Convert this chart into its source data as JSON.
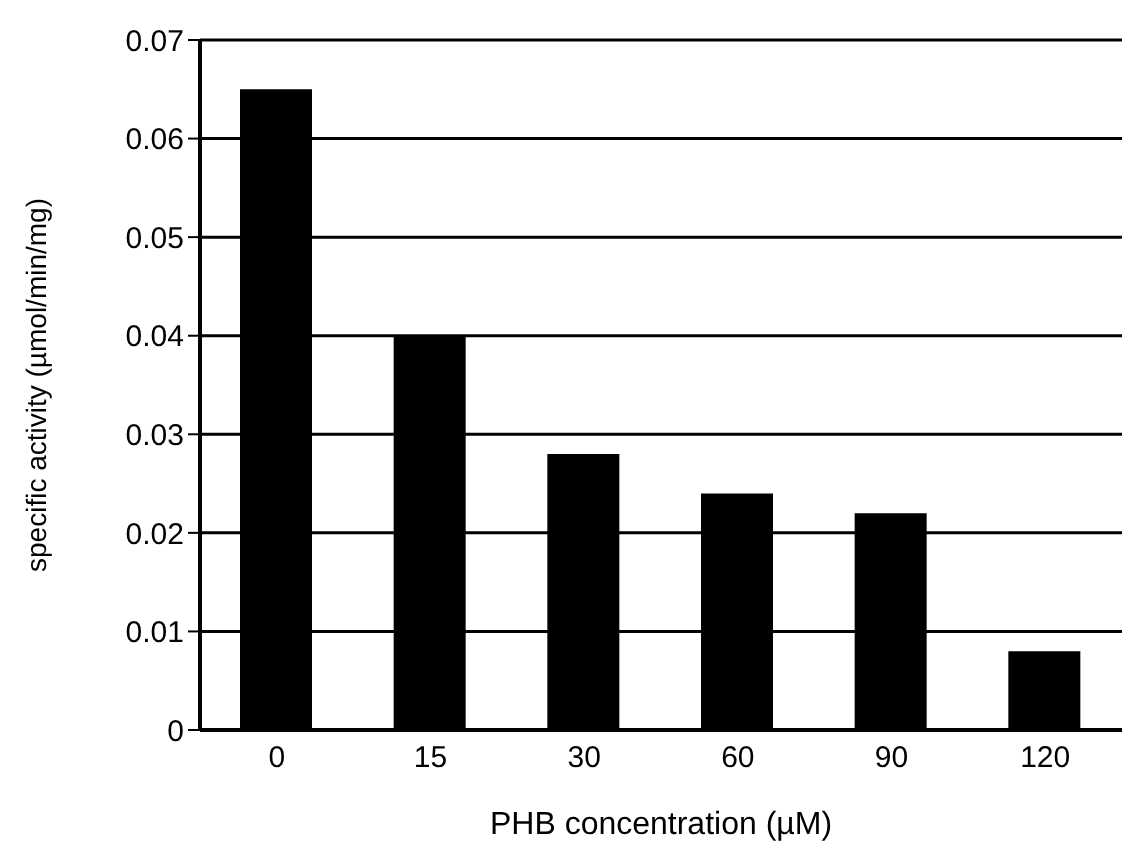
{
  "chart_data": {
    "type": "bar",
    "xlabel": "PHB concentration (µM)",
    "ylabel": "specific activity (µmol/min/mg)",
    "categories": [
      "0",
      "15",
      "30",
      "60",
      "90",
      "120"
    ],
    "values": [
      0.065,
      0.04,
      0.028,
      0.024,
      0.022,
      0.008
    ],
    "color": "#000000",
    "ylim": [
      0,
      0.07
    ],
    "yticks": [
      0,
      0.01,
      0.02,
      0.03,
      0.04,
      0.05,
      0.06,
      0.07
    ],
    "grid": "y"
  }
}
